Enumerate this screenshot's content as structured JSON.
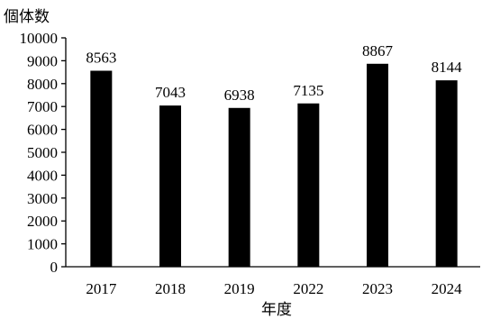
{
  "chart_data": {
    "type": "bar",
    "categories": [
      "2017",
      "2018",
      "2019",
      "2022",
      "2023",
      "2024"
    ],
    "values": [
      8563,
      7043,
      6938,
      7135,
      8867,
      8144
    ],
    "data_labels": [
      "8563",
      "7043",
      "6938",
      "7135",
      "8867",
      "8144"
    ],
    "xlabel": "年度",
    "ylabel": "個体数",
    "ylim": [
      0,
      10000
    ],
    "yticks": [
      0,
      1000,
      2000,
      3000,
      4000,
      5000,
      6000,
      7000,
      8000,
      9000,
      10000
    ],
    "ytick_labels": [
      "0",
      "1000",
      "2000",
      "3000",
      "4000",
      "5000",
      "6000",
      "7000",
      "8000",
      "9000",
      "10000"
    ],
    "grid": false,
    "legend": false,
    "bar_color": "#000000",
    "axis_color": "#000000"
  }
}
